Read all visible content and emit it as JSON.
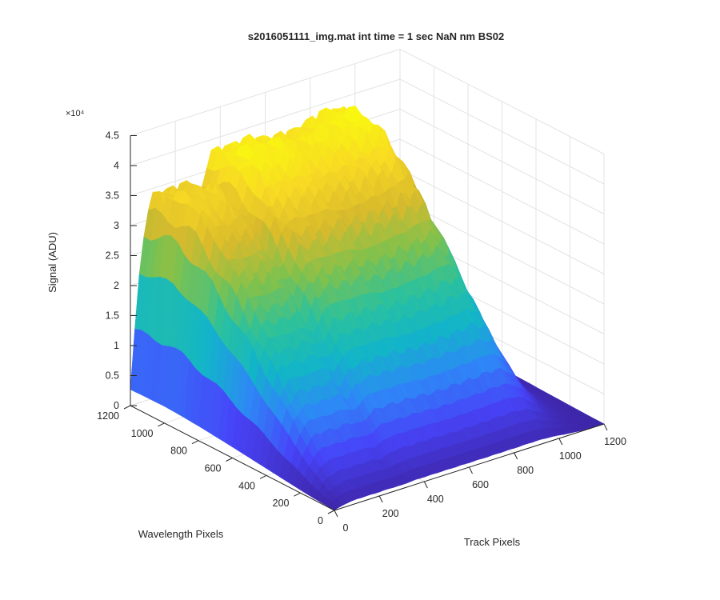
{
  "chart_data": {
    "type": "surface",
    "title": "s2016051111_img.mat int time = 1 sec  NaN nm BS02",
    "xlabel": "Track Pixels",
    "ylabel": "Wavelength Pixels",
    "zlabel": "Signal (ADU)",
    "z_exponent_label": "×10⁴",
    "xlim": [
      0,
      1200
    ],
    "ylim": [
      0,
      1200
    ],
    "zlim": [
      0,
      45000
    ],
    "xticks": [
      "0",
      "200",
      "400",
      "600",
      "800",
      "1000",
      "1200"
    ],
    "yticks": [
      "0",
      "200",
      "400",
      "600",
      "800",
      "1000",
      "1200"
    ],
    "zticks": [
      "0",
      "0.5",
      "1",
      "1.5",
      "2",
      "2.5",
      "3",
      "3.5",
      "4",
      "4.5"
    ],
    "z_tick_values": [
      0,
      5000,
      10000,
      15000,
      20000,
      25000,
      30000,
      35000,
      40000,
      45000
    ],
    "grid": true,
    "colormap": [
      "#3e26a8",
      "#4743f8",
      "#2e87f7",
      "#12b5c8",
      "#2cc19c",
      "#7fc14d",
      "#d8ba2c",
      "#f8d924",
      "#f9fb0e"
    ],
    "track_x": [
      0,
      50,
      100,
      150,
      200,
      250,
      300,
      350,
      400,
      450,
      500,
      550,
      600,
      650,
      700,
      750,
      800,
      850,
      900,
      950,
      1000,
      1050,
      1100,
      1150,
      1200
    ],
    "peak_signal_by_track": [
      2800,
      28000,
      36500,
      36000,
      35500,
      36000,
      32000,
      38000,
      38500,
      38000,
      38500,
      39000,
      38500,
      39000,
      39500,
      40000,
      39500,
      40000,
      39500,
      36000,
      26000,
      14000,
      6000,
      2000,
      800
    ],
    "wavelength_y": [
      0,
      100,
      200,
      300,
      400,
      500,
      600,
      700,
      800,
      900,
      1000,
      1100,
      1200
    ],
    "signal_profile_by_wavelength": [
      0.02,
      0.08,
      0.18,
      0.3,
      0.42,
      0.54,
      0.66,
      0.77,
      0.87,
      0.95,
      1.0,
      0.99,
      0.96
    ]
  }
}
